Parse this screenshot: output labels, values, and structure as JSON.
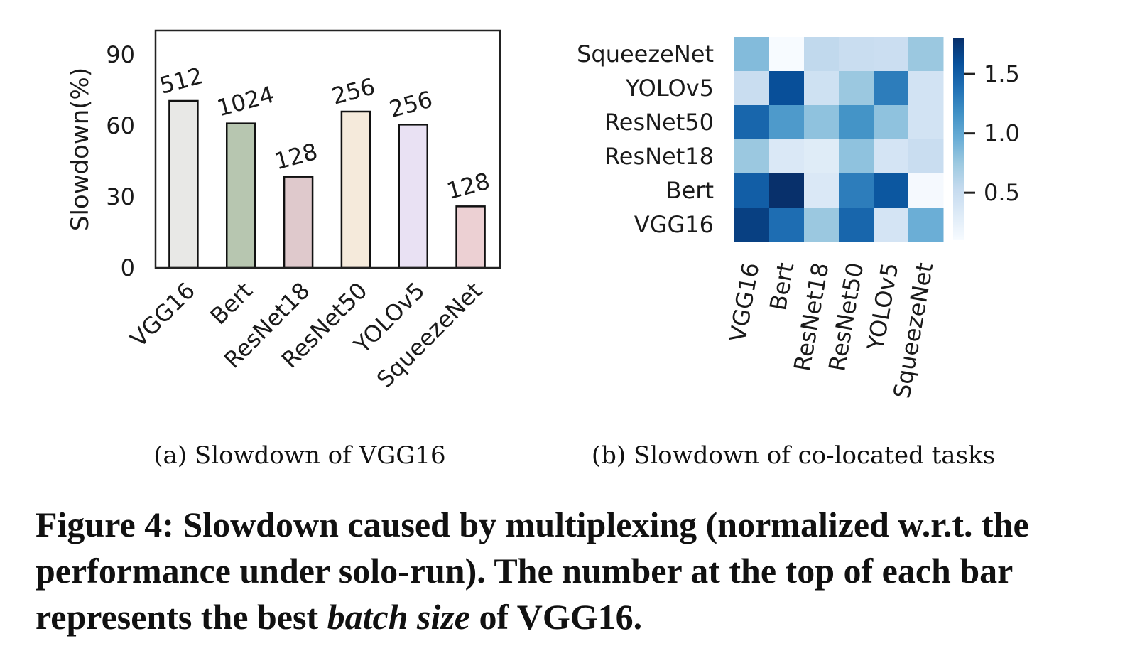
{
  "chart_data": [
    {
      "type": "bar",
      "ylabel": "Slowdown(%)",
      "xlabel": "",
      "ylim": [
        0,
        100
      ],
      "yticks": [
        "0",
        "30",
        "60",
        "90"
      ],
      "categories": [
        "VGG16",
        "Bert",
        "ResNet18",
        "ResNet50",
        "YOLOv5",
        "SqueezeNet"
      ],
      "values": [
        70.5,
        61,
        38.5,
        66,
        60.5,
        26
      ],
      "bar_labels": [
        "512",
        "1024",
        "128",
        "256",
        "256",
        "128"
      ],
      "colors": [
        "#e8e8e6",
        "#b7c6b0",
        "#dfc9cc",
        "#f5eadb",
        "#e9e1f3",
        "#ecd0d3"
      ],
      "grid": false,
      "subcaption": "(a)  Slowdown of VGG16"
    },
    {
      "type": "heatmap",
      "rows": [
        "SqueezeNet",
        "YOLOv5",
        "ResNet50",
        "ResNet18",
        "Bert",
        "VGG16"
      ],
      "columns": [
        "VGG16",
        "Bert",
        "ResNet18",
        "ResNet50",
        "YOLOv5",
        "SqueezeNet"
      ],
      "values": [
        [
          0.85,
          0.1,
          0.55,
          0.5,
          0.48,
          0.75
        ],
        [
          0.5,
          1.6,
          0.45,
          0.75,
          1.3,
          0.42
        ],
        [
          1.45,
          1.1,
          0.8,
          1.15,
          0.8,
          0.42
        ],
        [
          0.75,
          0.35,
          0.3,
          0.8,
          0.4,
          0.5
        ],
        [
          1.5,
          1.8,
          0.35,
          1.3,
          1.55,
          0.12
        ],
        [
          1.7,
          1.4,
          0.75,
          1.45,
          0.4,
          0.95
        ]
      ],
      "colorbar": {
        "ticks": [
          "0.5",
          "1.0",
          "1.5"
        ],
        "range": [
          0.1,
          1.8
        ],
        "colormap": "Blues"
      },
      "subcaption": "(b)  Slowdown of co-located tasks"
    }
  ],
  "caption": {
    "part1": "Figure 4: Slowdown caused by multiplexing (normalized w.r.t. the performance under solo-run). The number at the top of each bar represents the best ",
    "em": "batch size",
    "part2": " of VGG16."
  }
}
